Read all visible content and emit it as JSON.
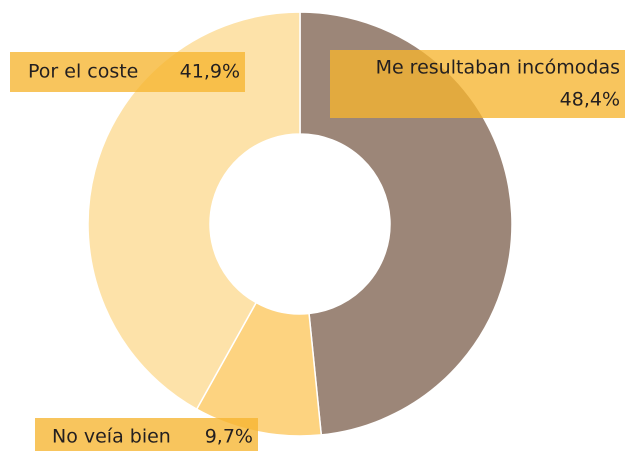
{
  "chart_data": {
    "type": "donut",
    "categories": [
      "Me resultaban incómodas",
      "No veía bien",
      "Por el coste"
    ],
    "values": [
      48.4,
      9.7,
      41.9
    ],
    "value_labels": [
      "48,4%",
      "9,7%",
      "41,9%"
    ],
    "colors": [
      "#9c8678",
      "#fdd380",
      "#fde2a9"
    ]
  }
}
